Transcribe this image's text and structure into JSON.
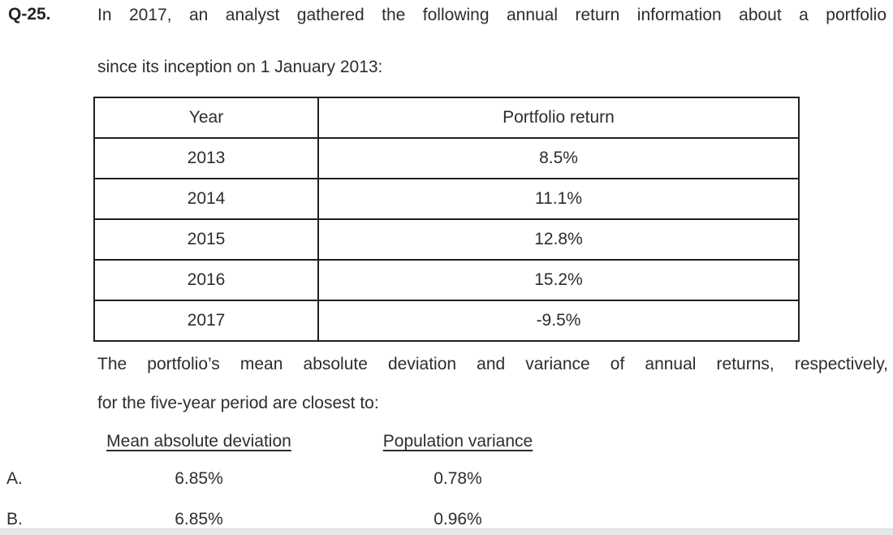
{
  "question": {
    "number": "Q-25.",
    "intro_line1": "In 2017, an analyst gathered the following annual return information about a portfolio",
    "intro_line2": "since its inception on 1 January 2013:",
    "followup_line1": "The portfolio’s mean absolute deviation and variance of annual returns, respectively,",
    "followup_line2": "for the five-year period are closest to:"
  },
  "table": {
    "headers": [
      "Year",
      "Portfolio return"
    ],
    "rows": [
      [
        "2013",
        "8.5%"
      ],
      [
        "2014",
        "11.1%"
      ],
      [
        "2015",
        "12.8%"
      ],
      [
        "2016",
        "15.2%"
      ],
      [
        "2017",
        "-9.5%"
      ]
    ]
  },
  "chart_data": {
    "type": "table",
    "title": "Annual portfolio returns since inception",
    "categories": [
      "2013",
      "2014",
      "2015",
      "2016",
      "2017"
    ],
    "values": [
      8.5,
      11.1,
      12.8,
      15.2,
      -9.5
    ],
    "value_unit": "%"
  },
  "options": {
    "col1_header": "Mean absolute deviation",
    "col2_header": "Population variance",
    "rows": [
      {
        "label": "A.",
        "col1": "6.85%",
        "col2": "0.78%"
      },
      {
        "label": "B.",
        "col1": "6.85%",
        "col2": "0.96%"
      }
    ]
  },
  "colors": {
    "text": "#2d2d2d",
    "table_border": "#1f1f1f",
    "bottom_bar": "#e6e7e9"
  }
}
